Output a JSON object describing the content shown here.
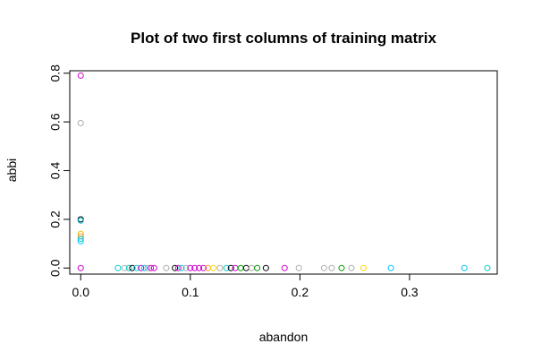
{
  "chart_data": {
    "type": "scatter",
    "title": "Plot of two first columns of training matrix",
    "xlabel": "abandon",
    "ylabel": "abbi",
    "xlim": [
      -0.01,
      0.38
    ],
    "ylim": [
      -0.025,
      0.81
    ],
    "xticks": [
      0.0,
      0.1,
      0.2,
      0.3
    ],
    "xtick_labels": [
      "0.0",
      "0.1",
      "0.2",
      "0.3"
    ],
    "yticks": [
      0.0,
      0.2,
      0.4,
      0.6,
      0.8
    ],
    "ytick_labels": [
      "0.0",
      "0.2",
      "0.4",
      "0.6",
      "0.8"
    ],
    "grid": false,
    "marker": "open-circle",
    "points": [
      {
        "x": 0.0,
        "y": 0.79,
        "color": "#cc00cc"
      },
      {
        "x": 0.0,
        "y": 0.595,
        "color": "#aaaaaa"
      },
      {
        "x": 0.0,
        "y": 0.2,
        "color": "#000000"
      },
      {
        "x": 0.0,
        "y": 0.195,
        "color": "#00bcd4"
      },
      {
        "x": 0.0,
        "y": 0.14,
        "color": "#e6c000"
      },
      {
        "x": 0.0,
        "y": 0.13,
        "color": "#ff9933"
      },
      {
        "x": 0.0,
        "y": 0.12,
        "color": "#00cccc"
      },
      {
        "x": 0.0,
        "y": 0.11,
        "color": "#00bfff"
      },
      {
        "x": 0.0,
        "y": 0.0,
        "color": "#cc00cc"
      },
      {
        "x": 0.034,
        "y": 0.0,
        "color": "#00cccc"
      },
      {
        "x": 0.04,
        "y": 0.0,
        "color": "#aaaaaa"
      },
      {
        "x": 0.044,
        "y": 0.0,
        "color": "#00cccc"
      },
      {
        "x": 0.047,
        "y": 0.0,
        "color": "#000000"
      },
      {
        "x": 0.051,
        "y": 0.0,
        "color": "#00cccc"
      },
      {
        "x": 0.055,
        "y": 0.0,
        "color": "#cc00cc"
      },
      {
        "x": 0.058,
        "y": 0.0,
        "color": "#00bfff"
      },
      {
        "x": 0.061,
        "y": 0.0,
        "color": "#aaaaaa"
      },
      {
        "x": 0.064,
        "y": 0.0,
        "color": "#cc00cc"
      },
      {
        "x": 0.067,
        "y": 0.0,
        "color": "#cc00cc"
      },
      {
        "x": 0.078,
        "y": 0.0,
        "color": "#aaaaaa"
      },
      {
        "x": 0.086,
        "y": 0.0,
        "color": "#000000"
      },
      {
        "x": 0.089,
        "y": 0.0,
        "color": "#cc00cc"
      },
      {
        "x": 0.092,
        "y": 0.0,
        "color": "#00cccc"
      },
      {
        "x": 0.096,
        "y": 0.0,
        "color": "#aaaaaa"
      },
      {
        "x": 0.1,
        "y": 0.0,
        "color": "#cc00cc"
      },
      {
        "x": 0.104,
        "y": 0.0,
        "color": "#cc00cc"
      },
      {
        "x": 0.108,
        "y": 0.0,
        "color": "#cc00cc"
      },
      {
        "x": 0.112,
        "y": 0.0,
        "color": "#cc00cc"
      },
      {
        "x": 0.116,
        "y": 0.0,
        "color": "#ff9933"
      },
      {
        "x": 0.121,
        "y": 0.0,
        "color": "#ffd700"
      },
      {
        "x": 0.127,
        "y": 0.0,
        "color": "#aaaaaa"
      },
      {
        "x": 0.133,
        "y": 0.0,
        "color": "#00cccc"
      },
      {
        "x": 0.137,
        "y": 0.0,
        "color": "#000000"
      },
      {
        "x": 0.141,
        "y": 0.0,
        "color": "#cc00cc"
      },
      {
        "x": 0.146,
        "y": 0.0,
        "color": "#009900"
      },
      {
        "x": 0.151,
        "y": 0.0,
        "color": "#000000"
      },
      {
        "x": 0.156,
        "y": 0.0,
        "color": "#aaaaaa"
      },
      {
        "x": 0.161,
        "y": 0.0,
        "color": "#009900"
      },
      {
        "x": 0.169,
        "y": 0.0,
        "color": "#000000"
      },
      {
        "x": 0.186,
        "y": 0.0,
        "color": "#cc00cc"
      },
      {
        "x": 0.199,
        "y": 0.0,
        "color": "#aaaaaa"
      },
      {
        "x": 0.222,
        "y": 0.0,
        "color": "#aaaaaa"
      },
      {
        "x": 0.229,
        "y": 0.0,
        "color": "#aaaaaa"
      },
      {
        "x": 0.238,
        "y": 0.0,
        "color": "#009900"
      },
      {
        "x": 0.247,
        "y": 0.0,
        "color": "#aaaaaa"
      },
      {
        "x": 0.258,
        "y": 0.0,
        "color": "#ffd700"
      },
      {
        "x": 0.283,
        "y": 0.0,
        "color": "#00bfff"
      },
      {
        "x": 0.35,
        "y": 0.0,
        "color": "#00bfff"
      },
      {
        "x": 0.371,
        "y": 0.0,
        "color": "#00cccc"
      }
    ]
  }
}
